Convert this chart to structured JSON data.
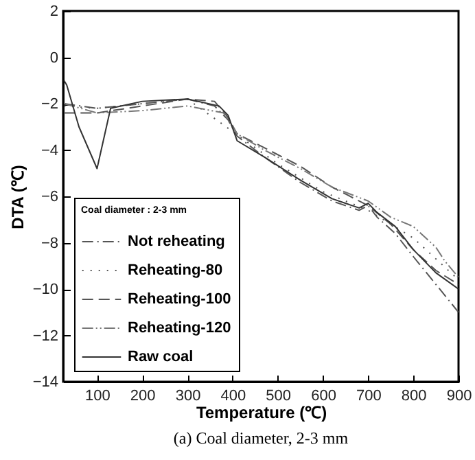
{
  "chart_data": {
    "type": "line",
    "xlabel": "Temperature (℃)",
    "ylabel": "DTA (℃)",
    "legend_title": "Coal diameter : 2-3 mm",
    "legend": "bottom left",
    "grid": false,
    "xlim": [
      25,
      900
    ],
    "xticks": [
      100,
      200,
      300,
      400,
      500,
      600,
      700,
      800,
      900
    ],
    "ylim": [
      -14,
      2
    ],
    "yticks": [
      -14,
      -12,
      -10,
      -8,
      -6,
      -4,
      -2,
      0,
      2
    ],
    "annotations": [
      "(a) Coal diameter, 2-3 mm"
    ],
    "series": [
      {
        "name": "Not reheating",
        "color": "#555555",
        "line_style": "dashdot",
        "x": [
          27,
          100,
          200,
          300,
          360,
          390,
          410,
          470,
          550,
          620,
          680,
          700,
          720,
          760,
          800,
          850,
          900
        ],
        "values": [
          -2.0,
          -2.2,
          -2.0,
          -1.8,
          -2.1,
          -2.7,
          -3.4,
          -4.3,
          -5.4,
          -6.2,
          -6.6,
          -6.4,
          -6.9,
          -7.6,
          -8.6,
          -9.8,
          -11.0
        ]
      },
      {
        "name": "Reheating-80",
        "color": "#555555",
        "line_style": "dotted",
        "x": [
          27,
          100,
          200,
          300,
          400,
          500,
          600,
          700,
          800,
          900
        ],
        "values": [
          -2.1,
          -2.2,
          -2.0,
          -1.8,
          -3.2,
          -4.6,
          -5.8,
          -6.6,
          -7.8,
          -9.6
        ]
      },
      {
        "name": "Reheating-100",
        "color": "#555555",
        "line_style": "dashed",
        "x": [
          27,
          100,
          200,
          300,
          360,
          390,
          410,
          470,
          550,
          620,
          700,
          750,
          800,
          850,
          900
        ],
        "values": [
          -2.4,
          -2.4,
          -2.1,
          -1.8,
          -1.9,
          -2.6,
          -3.3,
          -3.9,
          -4.7,
          -5.6,
          -6.4,
          -7.2,
          -8.3,
          -9.2,
          -9.8
        ]
      },
      {
        "name": "Reheating-120",
        "color": "#777777",
        "line_style": "dashdotdot",
        "x": [
          27,
          100,
          200,
          300,
          380,
          410,
          470,
          550,
          620,
          700,
          750,
          800,
          850,
          870,
          900
        ],
        "values": [
          -2.0,
          -2.4,
          -2.3,
          -2.1,
          -2.4,
          -3.3,
          -4.0,
          -4.8,
          -5.6,
          -6.2,
          -6.9,
          -7.3,
          -8.2,
          -8.8,
          -9.5
        ]
      },
      {
        "name": "Raw coal",
        "color": "#333333",
        "line_style": "solid",
        "x": [
          27,
          33,
          60,
          100,
          130,
          200,
          300,
          370,
          390,
          410,
          470,
          550,
          620,
          680,
          700,
          720,
          760,
          800,
          850,
          900
        ],
        "values": [
          -1.0,
          -1.2,
          -3.0,
          -4.8,
          -2.2,
          -1.9,
          -1.8,
          -2.1,
          -2.5,
          -3.6,
          -4.3,
          -5.3,
          -6.1,
          -6.5,
          -6.3,
          -6.7,
          -7.3,
          -8.3,
          -9.3,
          -10.0
        ]
      }
    ]
  }
}
